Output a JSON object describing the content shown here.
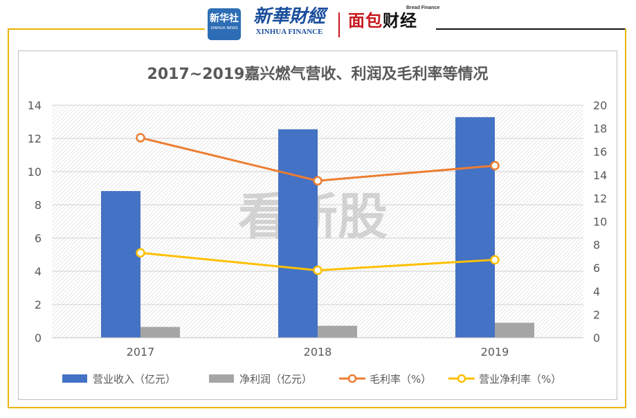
{
  "header": {
    "logo_cn": "新华社",
    "logo_en": "XINHUA NEWS",
    "brand_cn": "新華財經",
    "brand_en": "XINHUA FINANCE",
    "brand2_en": "Bread Finance",
    "brand2_cn_part1": "面包",
    "brand2_cn_part2": "财经"
  },
  "watermark": "看新股",
  "colors": {
    "revenue": "#4472c4",
    "net_profit": "#a5a5a5",
    "gross_margin": "#ed7d31",
    "net_margin": "#ffc000",
    "frame": "#e9b400"
  },
  "chart_data": {
    "type": "bar",
    "title": "2017~2019嘉兴燃气营收、利润及毛利率等情况",
    "categories": [
      "2017",
      "2018",
      "2019"
    ],
    "y_left": {
      "ticks": [
        "0",
        "2",
        "4",
        "6",
        "8",
        "10",
        "12",
        "14"
      ],
      "ylim": [
        0,
        14
      ]
    },
    "y_right": {
      "ticks": [
        "0",
        "2",
        "4",
        "6",
        "8",
        "10",
        "12",
        "14",
        "16",
        "18",
        "20"
      ],
      "ylim": [
        0,
        20
      ]
    },
    "grid": true,
    "legend_position": "bottom",
    "series": [
      {
        "name": "营业收入（亿元）",
        "type": "bar",
        "axis": "left",
        "values": [
          8.83,
          12.55,
          13.28
        ]
      },
      {
        "name": "净利润（亿元）",
        "type": "bar",
        "axis": "left",
        "values": [
          0.65,
          0.72,
          0.9
        ]
      },
      {
        "name": "毛利率（%）",
        "type": "line",
        "axis": "right",
        "values": [
          17.2,
          13.5,
          14.8
        ]
      },
      {
        "name": "营业净利率（%）",
        "type": "line",
        "axis": "right",
        "values": [
          7.3,
          5.8,
          6.7
        ]
      }
    ]
  }
}
